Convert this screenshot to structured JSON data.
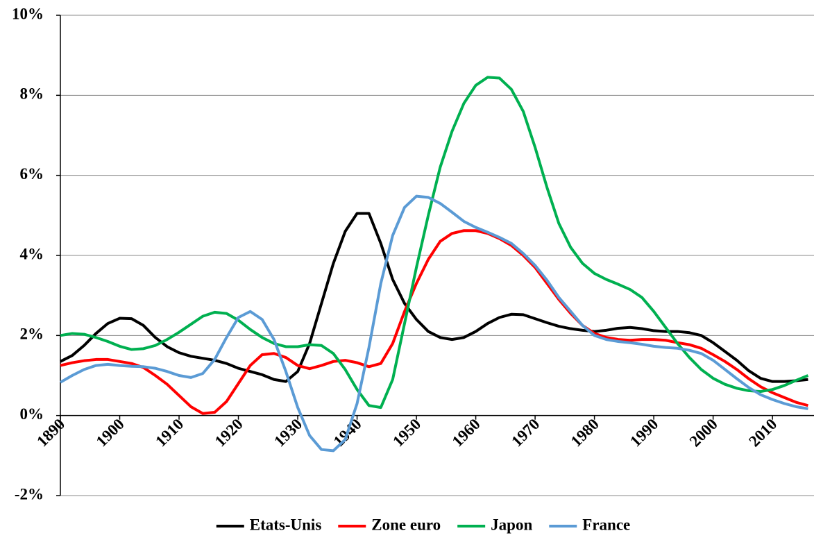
{
  "chart_data": {
    "type": "line",
    "x": [
      1890,
      1892,
      1894,
      1896,
      1898,
      1900,
      1902,
      1904,
      1906,
      1908,
      1910,
      1912,
      1914,
      1916,
      1918,
      1920,
      1922,
      1924,
      1926,
      1928,
      1930,
      1932,
      1934,
      1936,
      1938,
      1940,
      1942,
      1944,
      1946,
      1948,
      1950,
      1952,
      1954,
      1956,
      1958,
      1960,
      1962,
      1964,
      1966,
      1968,
      1970,
      1972,
      1974,
      1976,
      1978,
      1980,
      1982,
      1984,
      1986,
      1988,
      1990,
      1992,
      1994,
      1996,
      1998,
      2000,
      2002,
      2004,
      2006,
      2008,
      2010,
      2012,
      2014,
      2016
    ],
    "series": [
      {
        "name": "Etats-Unis",
        "color": "#000000",
        "values": [
          1.35,
          1.5,
          1.75,
          2.05,
          2.3,
          2.43,
          2.42,
          2.25,
          1.95,
          1.72,
          1.57,
          1.48,
          1.43,
          1.38,
          1.3,
          1.18,
          1.1,
          1.02,
          0.9,
          0.85,
          1.1,
          1.8,
          2.8,
          3.8,
          4.6,
          5.05,
          5.05,
          4.3,
          3.4,
          2.8,
          2.4,
          2.1,
          1.95,
          1.9,
          1.95,
          2.1,
          2.3,
          2.45,
          2.53,
          2.52,
          2.42,
          2.32,
          2.23,
          2.17,
          2.13,
          2.1,
          2.13,
          2.18,
          2.2,
          2.17,
          2.12,
          2.1,
          2.1,
          2.07,
          2.0,
          1.82,
          1.6,
          1.38,
          1.12,
          0.93,
          0.85,
          0.85,
          0.87,
          0.9
        ]
      },
      {
        "name": "Zone euro",
        "color": "#ff0000",
        "values": [
          1.25,
          1.32,
          1.37,
          1.4,
          1.4,
          1.35,
          1.3,
          1.2,
          1.0,
          0.78,
          0.5,
          0.22,
          0.05,
          0.08,
          0.35,
          0.8,
          1.25,
          1.52,
          1.55,
          1.45,
          1.25,
          1.17,
          1.25,
          1.35,
          1.38,
          1.32,
          1.22,
          1.3,
          1.8,
          2.6,
          3.3,
          3.9,
          4.35,
          4.55,
          4.62,
          4.62,
          4.55,
          4.42,
          4.25,
          4.0,
          3.7,
          3.3,
          2.9,
          2.55,
          2.25,
          2.05,
          1.95,
          1.9,
          1.88,
          1.9,
          1.9,
          1.88,
          1.82,
          1.77,
          1.68,
          1.52,
          1.35,
          1.15,
          0.92,
          0.72,
          0.57,
          0.45,
          0.33,
          0.25
        ]
      },
      {
        "name": "Japon",
        "color": "#00b050",
        "values": [
          2.0,
          2.05,
          2.03,
          1.95,
          1.85,
          1.73,
          1.65,
          1.67,
          1.75,
          1.9,
          2.08,
          2.28,
          2.48,
          2.58,
          2.55,
          2.38,
          2.15,
          1.95,
          1.8,
          1.72,
          1.72,
          1.77,
          1.75,
          1.55,
          1.15,
          0.65,
          0.25,
          0.2,
          0.9,
          2.3,
          3.7,
          5.0,
          6.2,
          7.1,
          7.8,
          8.25,
          8.45,
          8.43,
          8.15,
          7.6,
          6.7,
          5.7,
          4.8,
          4.2,
          3.8,
          3.55,
          3.4,
          3.28,
          3.15,
          2.95,
          2.6,
          2.2,
          1.8,
          1.45,
          1.15,
          0.93,
          0.78,
          0.68,
          0.62,
          0.6,
          0.65,
          0.75,
          0.88,
          1.0
        ]
      },
      {
        "name": "France",
        "color": "#5b9bd5",
        "values": [
          0.83,
          1.0,
          1.15,
          1.25,
          1.28,
          1.25,
          1.23,
          1.22,
          1.18,
          1.1,
          1.0,
          0.95,
          1.05,
          1.4,
          1.95,
          2.45,
          2.6,
          2.4,
          1.9,
          1.1,
          0.2,
          -0.5,
          -0.85,
          -0.88,
          -0.6,
          0.3,
          1.7,
          3.3,
          4.5,
          5.2,
          5.48,
          5.45,
          5.3,
          5.08,
          4.85,
          4.7,
          4.58,
          4.45,
          4.3,
          4.05,
          3.75,
          3.38,
          2.95,
          2.6,
          2.25,
          2.0,
          1.9,
          1.85,
          1.82,
          1.78,
          1.73,
          1.7,
          1.68,
          1.63,
          1.55,
          1.38,
          1.15,
          0.92,
          0.7,
          0.52,
          0.4,
          0.3,
          0.22,
          0.17
        ]
      }
    ],
    "xlim": [
      1890,
      2017
    ],
    "xticks": [
      1890,
      1900,
      1910,
      1920,
      1930,
      1940,
      1950,
      1960,
      1970,
      1980,
      1990,
      2000,
      2010
    ],
    "ylim": [
      -2,
      10
    ],
    "yticks": [
      {
        "value": -2,
        "label": "-2%"
      },
      {
        "value": 0,
        "label": "0%"
      },
      {
        "value": 2,
        "label": "2%"
      },
      {
        "value": 4,
        "label": "4%"
      },
      {
        "value": 6,
        "label": "6%"
      },
      {
        "value": 8,
        "label": "8%"
      },
      {
        "value": 10,
        "label": "10%"
      }
    ],
    "grid": true,
    "legend": "bottom"
  }
}
